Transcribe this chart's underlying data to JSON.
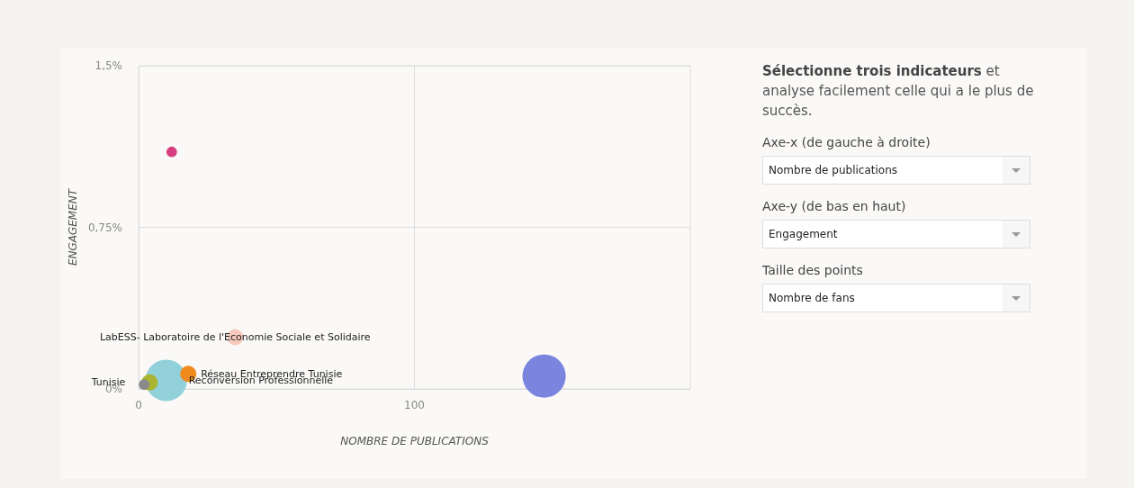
{
  "chart_data": {
    "type": "bubble",
    "xlabel": "NOMBRE DE PUBLICATIONS",
    "ylabel": "ENGAGEMENT",
    "xlim": [
      0,
      200
    ],
    "xticks": [
      0,
      100
    ],
    "ylim": [
      0,
      1.5
    ],
    "yticks": [
      {
        "value": 0,
        "label": "0%"
      },
      {
        "value": 0.75,
        "label": "0,75%"
      },
      {
        "value": 1.5,
        "label": "1,5%"
      }
    ],
    "grid": true,
    "legend": false,
    "series": [
      {
        "color": "#d63f7e",
        "x": [
          12
        ],
        "values": [
          1.1
        ],
        "sizes": [
          0.06
        ]
      },
      {
        "name": "LabESS- Laboratoire de l'Economie Sociale et Solidaire",
        "color": "#f7cabd",
        "x": [
          35
        ],
        "values": [
          0.24
        ],
        "sizes": [
          0.14
        ]
      },
      {
        "name": "Reconversion Professionnelle",
        "color": "#92d0da",
        "x": [
          10
        ],
        "values": [
          0.04
        ],
        "sizes": [
          0.92
        ]
      },
      {
        "name": "Réseau Entreprendre Tunisie",
        "color": "#f08a1e",
        "x": [
          18
        ],
        "values": [
          0.07
        ],
        "sizes": [
          0.14
        ]
      },
      {
        "name": "Tunisie",
        "color": "#a9b531",
        "x": [
          4
        ],
        "values": [
          0.03
        ],
        "sizes": [
          0.14
        ]
      },
      {
        "color": "#8a8a8a",
        "x": [
          2
        ],
        "values": [
          0.02
        ],
        "sizes": [
          0.06
        ]
      },
      {
        "color": "#7b85e0",
        "x": [
          147
        ],
        "values": [
          0.06
        ],
        "sizes": [
          1
        ]
      }
    ],
    "annotations": [
      "Sélectionne trois indicateurs",
      "et analyse facilement celle qui a le plus de succès.",
      "Axe-x (de gauche à droite)",
      "Nombre de publications",
      "Axe-y (de bas en haut)",
      "Engagement",
      "Taille des points",
      "Nombre de fans"
    ]
  }
}
